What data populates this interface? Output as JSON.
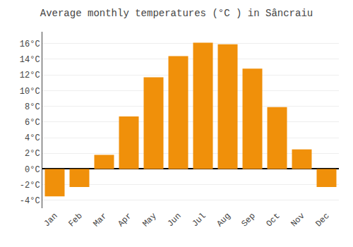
{
  "chart_data": {
    "type": "bar",
    "title": "Average monthly temperatures (°C ) in Sâncraiu",
    "categories": [
      "Jan",
      "Feb",
      "Mar",
      "Apr",
      "May",
      "Jun",
      "Jul",
      "Aug",
      "Sep",
      "Oct",
      "Nov",
      "Dec"
    ],
    "values": [
      -3.5,
      -2.3,
      1.8,
      6.7,
      11.7,
      14.4,
      16.1,
      15.9,
      12.8,
      7.9,
      2.5,
      -2.3
    ],
    "color": "#F0900A",
    "ylim": [
      -5,
      17.5
    ],
    "yticks": [
      {
        "value": -4,
        "label": "-4°C"
      },
      {
        "value": -2,
        "label": "-2°C"
      },
      {
        "value": 0,
        "label": "0°C"
      },
      {
        "value": 2,
        "label": "2°C"
      },
      {
        "value": 4,
        "label": "4°C"
      },
      {
        "value": 6,
        "label": "6°C"
      },
      {
        "value": 8,
        "label": "8°C"
      },
      {
        "value": 10,
        "label": "10°C"
      },
      {
        "value": 12,
        "label": "12°C"
      },
      {
        "value": 14,
        "label": "14°C"
      },
      {
        "value": 16,
        "label": "16°C"
      }
    ],
    "grid": true
  }
}
